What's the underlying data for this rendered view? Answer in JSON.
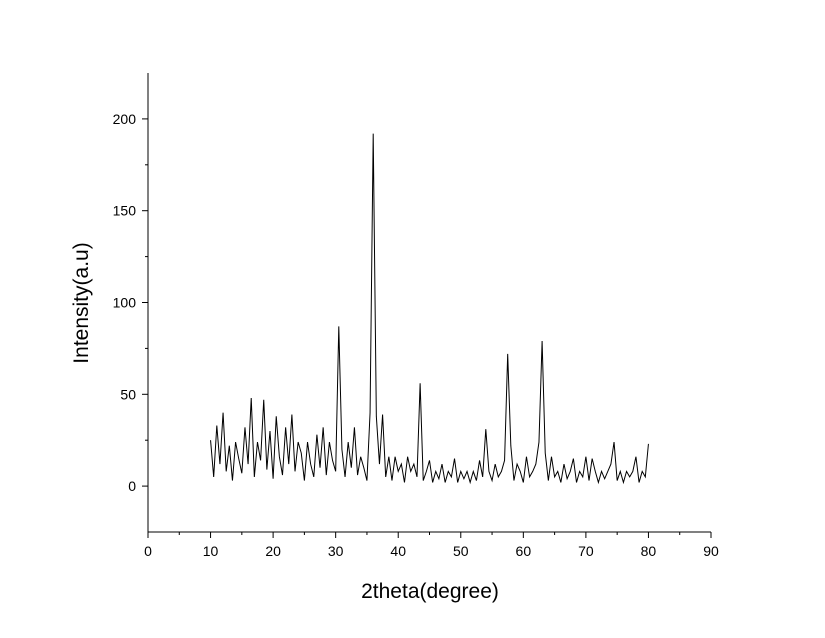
{
  "chart_data": {
    "type": "line",
    "xlabel": "2theta(degree)",
    "ylabel": "Intensity(a.u)",
    "xlim": [
      0,
      90
    ],
    "xticks": [
      0,
      10,
      20,
      30,
      40,
      50,
      60,
      70,
      80,
      90
    ],
    "ylim": [
      -25,
      225
    ],
    "yticks": [
      0,
      50,
      100,
      150,
      200
    ],
    "color": "#000000",
    "x": [
      10,
      10.5,
      11,
      11.5,
      12,
      12.5,
      13,
      13.5,
      14,
      14.5,
      15,
      15.5,
      16,
      16.5,
      17,
      17.5,
      18,
      18.5,
      19,
      19.5,
      20,
      20.5,
      21,
      21.5,
      22,
      22.5,
      23,
      23.5,
      24,
      24.5,
      25,
      25.5,
      26,
      26.5,
      27,
      27.5,
      28,
      28.5,
      29,
      29.5,
      30,
      30.5,
      31,
      31.5,
      32,
      32.5,
      33,
      33.5,
      34,
      34.5,
      35,
      35.5,
      36,
      36.5,
      37,
      37.5,
      38,
      38.5,
      39,
      39.5,
      40,
      40.5,
      41,
      41.5,
      42,
      42.5,
      43,
      43.5,
      44,
      44.5,
      45,
      45.5,
      46,
      46.5,
      47,
      47.5,
      48,
      48.5,
      49,
      49.5,
      50,
      50.5,
      51,
      51.5,
      52,
      52.5,
      53,
      53.5,
      54,
      54.5,
      55,
      55.5,
      56,
      56.5,
      57,
      57.5,
      58,
      58.5,
      59,
      59.5,
      60,
      60.5,
      61,
      61.5,
      62,
      62.5,
      63,
      63.5,
      64,
      64.5,
      65,
      65.5,
      66,
      66.5,
      67,
      67.5,
      68,
      68.5,
      69,
      69.5,
      70,
      70.5,
      71,
      71.5,
      72,
      72.5,
      73,
      73.5,
      74,
      74.5,
      75,
      75.5,
      76,
      76.5,
      77,
      77.5,
      78,
      78.5,
      79,
      79.5,
      80
    ],
    "values": [
      25,
      5,
      33,
      12,
      40,
      8,
      22,
      3,
      24,
      15,
      7,
      32,
      12,
      48,
      5,
      24,
      14,
      47,
      9,
      30,
      4,
      38,
      16,
      6,
      32,
      12,
      39,
      8,
      24,
      18,
      3,
      24,
      12,
      5,
      28,
      10,
      32,
      6,
      24,
      14,
      8,
      87,
      20,
      5,
      24,
      10,
      32,
      6,
      16,
      10,
      3,
      40,
      192,
      38,
      12,
      39,
      5,
      16,
      3,
      16,
      8,
      12,
      2,
      16,
      8,
      12,
      5,
      56,
      3,
      8,
      14,
      2,
      8,
      4,
      12,
      2,
      8,
      5,
      15,
      2,
      8,
      4,
      8,
      2,
      8,
      3,
      14,
      5,
      31,
      8,
      3,
      12,
      5,
      8,
      14,
      72,
      22,
      3,
      12,
      8,
      2,
      16,
      5,
      8,
      12,
      24,
      79,
      18,
      3,
      16,
      5,
      8,
      2,
      12,
      4,
      8,
      15,
      2,
      8,
      5,
      16,
      3,
      15,
      8,
      2,
      8,
      4,
      8,
      12,
      24,
      3,
      8,
      2,
      8,
      5,
      8,
      16,
      2,
      8,
      5,
      23
    ]
  }
}
